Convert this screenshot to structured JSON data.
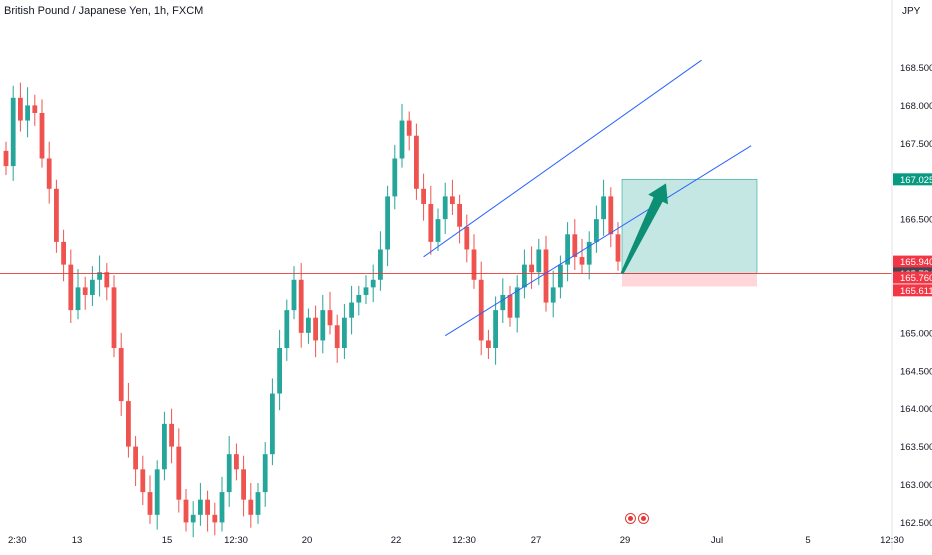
{
  "header": {
    "title": "British Pound / Japanese Yen, 1h, FXCM",
    "currency": "JPY"
  },
  "colors": {
    "up": "#26a69a",
    "down": "#ef5350",
    "channel": "#2962ff",
    "price_line": "#e53935",
    "profit_zone": "#b2dfdb",
    "loss_zone": "#ffcdd2",
    "arrow": "#0d8f75",
    "target_badge": "#089981",
    "current_badge": "#f23645",
    "mid_badge": "#434651"
  },
  "chart_data": {
    "type": "candlestick",
    "symbol": "GBPJPY",
    "timeframe": "1h",
    "ylim": [
      162.4,
      169.1
    ],
    "y_ticks": [
      162.5,
      163.0,
      163.5,
      164.0,
      164.5,
      165.0,
      165.5,
      166.0,
      166.5,
      167.0,
      167.5,
      168.0,
      168.5
    ],
    "y_tick_labels": [
      "162.500",
      "163.000",
      "163.500",
      "164.000",
      "164.500",
      "165.000",
      "",
      "",
      "166.500",
      "",
      "167.500",
      "168.000",
      "168.500"
    ],
    "x_labels": [
      "2:30",
      "13",
      "15",
      "12:30",
      "20",
      "22",
      "12:30",
      "27",
      "29",
      "Jul",
      "5",
      "12:30"
    ],
    "close_series": [
      167.2,
      168.1,
      167.8,
      168.0,
      167.9,
      167.3,
      166.9,
      166.2,
      165.9,
      165.3,
      165.6,
      165.5,
      165.7,
      165.8,
      165.6,
      164.8,
      164.1,
      163.5,
      163.2,
      162.9,
      162.6,
      163.2,
      163.8,
      163.5,
      162.8,
      162.5,
      162.6,
      162.8,
      162.6,
      162.5,
      162.9,
      163.4,
      163.2,
      162.8,
      162.6,
      162.9,
      163.4,
      164.2,
      164.8,
      165.3,
      165.7,
      165.0,
      165.2,
      164.9,
      165.3,
      165.1,
      164.8,
      165.2,
      165.4,
      165.5,
      165.6,
      165.7,
      166.1,
      166.8,
      167.3,
      167.8,
      167.6,
      166.9,
      166.7,
      166.2,
      166.5,
      166.8,
      166.7,
      166.4,
      166.1,
      165.7,
      164.9,
      164.8,
      165.3,
      165.5,
      165.2,
      165.6,
      165.9,
      165.8,
      166.1,
      165.4,
      165.6,
      165.9,
      166.3,
      166.0,
      165.9,
      166.2,
      166.5,
      166.8,
      166.3,
      165.94
    ],
    "last_price": 165.94,
    "levels": {
      "current": {
        "value": 165.94,
        "label": "165.940",
        "countdown": "19:33"
      },
      "mid": {
        "value": 165.784,
        "label": "165.784"
      },
      "stop_top": {
        "value": 165.76,
        "label": "165.760"
      },
      "stop": {
        "value": 165.611,
        "label": "165.611"
      },
      "target": {
        "value": 167.025,
        "label": "167.025"
      }
    },
    "channel": {
      "upper": [
        {
          "x_index": 52,
          "y": 165.6
        },
        {
          "x_index": 84,
          "y": 167.75
        }
      ],
      "lower": [
        {
          "x_index": 54,
          "y": 164.55
        },
        {
          "x_index": 93,
          "y": 166.85
        }
      ]
    },
    "position": {
      "type": "long",
      "entry": 165.784,
      "target": 167.025,
      "stop": 165.611
    },
    "grid": false
  }
}
